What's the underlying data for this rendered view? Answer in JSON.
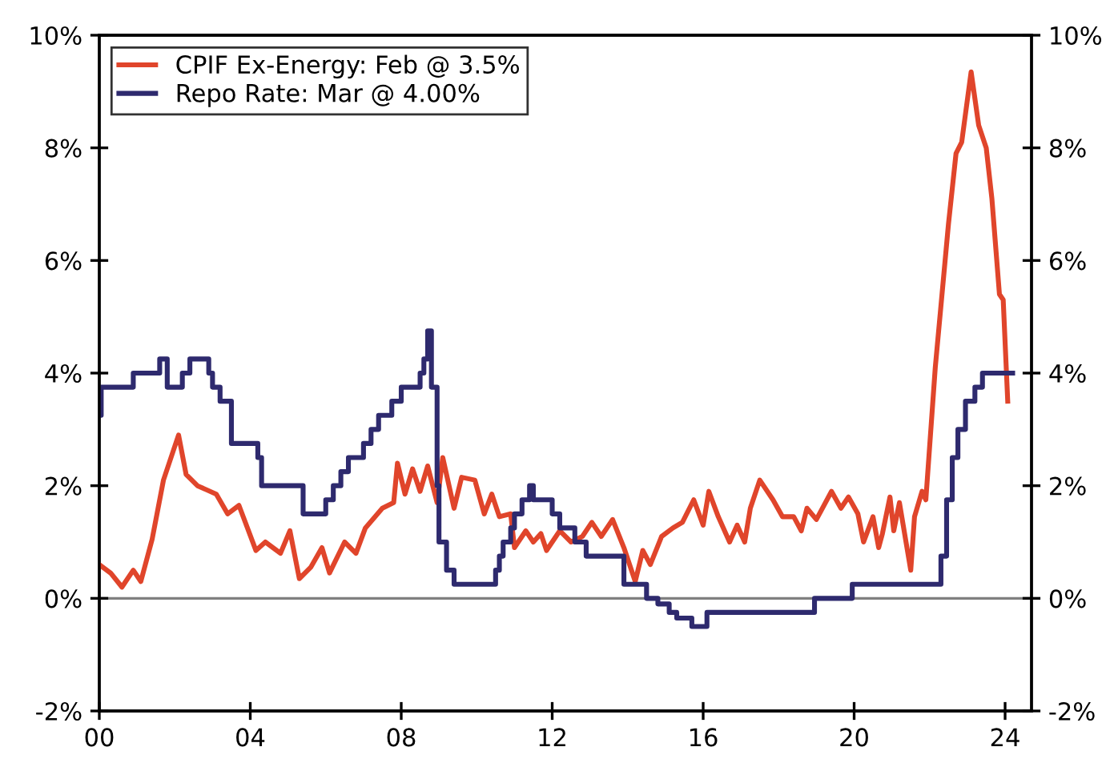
{
  "chart_data": {
    "type": "line",
    "xlim": [
      2000,
      2024.7
    ],
    "xticks": [
      {
        "value": 2000,
        "label": "00"
      },
      {
        "value": 2004,
        "label": "04"
      },
      {
        "value": 2008,
        "label": "08"
      },
      {
        "value": 2012,
        "label": "12"
      },
      {
        "value": 2016,
        "label": "16"
      },
      {
        "value": 2020,
        "label": "20"
      },
      {
        "value": 2024,
        "label": "24"
      }
    ],
    "ylim": [
      -2,
      10
    ],
    "yticks": [
      {
        "value": -2,
        "label": "-2%"
      },
      {
        "value": 0,
        "label": "0%"
      },
      {
        "value": 2,
        "label": "2%"
      },
      {
        "value": 4,
        "label": "4%"
      },
      {
        "value": 6,
        "label": "6%"
      },
      {
        "value": 8,
        "label": "8%"
      },
      {
        "value": 10,
        "label": "10%"
      }
    ],
    "y2lim": [
      -2,
      10
    ],
    "y2ticks": [
      {
        "value": -2,
        "label": "-2%"
      },
      {
        "value": 0,
        "label": "0%"
      },
      {
        "value": 2,
        "label": "2%"
      },
      {
        "value": 4,
        "label": "4%"
      },
      {
        "value": 6,
        "label": "6%"
      },
      {
        "value": 8,
        "label": "8%"
      },
      {
        "value": 10,
        "label": "10%"
      }
    ],
    "ref_lines": [
      {
        "axis": "y",
        "value": 0,
        "label": null,
        "color": "#808080"
      }
    ],
    "legend": "top left",
    "grid": false,
    "line_style": "solid",
    "marker": "none",
    "series": [
      {
        "name": "CPIF Ex-Energy: Feb @ 3.5%",
        "color": "#e0452b",
        "x": [
          2000.0,
          2000.3,
          2000.6,
          2000.9,
          2001.1,
          2001.4,
          2001.7,
          2002.1,
          2002.3,
          2002.6,
          2003.1,
          2003.4,
          2003.7,
          2004.15,
          2004.4,
          2004.8,
          2005.05,
          2005.3,
          2005.6,
          2005.9,
          2006.1,
          2006.5,
          2006.8,
          2007.05,
          2007.5,
          2007.8,
          2007.9,
          2008.1,
          2008.3,
          2008.5,
          2008.7,
          2008.95,
          2009.1,
          2009.4,
          2009.6,
          2009.95,
          2010.2,
          2010.4,
          2010.6,
          2010.9,
          2011.0,
          2011.3,
          2011.5,
          2011.7,
          2011.85,
          2012.2,
          2012.5,
          2012.8,
          2013.05,
          2013.3,
          2013.6,
          2013.9,
          2014.2,
          2014.4,
          2014.6,
          2014.9,
          2015.2,
          2015.45,
          2015.75,
          2016.0,
          2016.15,
          2016.4,
          2016.7,
          2016.9,
          2017.1,
          2017.25,
          2017.5,
          2017.85,
          2018.1,
          2018.4,
          2018.6,
          2018.75,
          2019.0,
          2019.4,
          2019.65,
          2019.85,
          2020.1,
          2020.25,
          2020.5,
          2020.65,
          2020.75,
          2020.95,
          2021.05,
          2021.2,
          2021.5,
          2021.6,
          2021.8,
          2021.9,
          2022.15,
          2022.5,
          2022.7,
          2022.85,
          2023.1,
          2023.3,
          2023.5,
          2023.65,
          2023.85,
          2023.95,
          2024.07
        ],
        "values": [
          0.6,
          0.45,
          0.2,
          0.5,
          0.3,
          1.05,
          2.1,
          2.9,
          2.2,
          2.0,
          1.85,
          1.5,
          1.65,
          0.85,
          1.0,
          0.8,
          1.2,
          0.35,
          0.55,
          0.9,
          0.45,
          1.0,
          0.8,
          1.25,
          1.6,
          1.7,
          2.4,
          1.85,
          2.3,
          1.9,
          2.35,
          1.7,
          2.5,
          1.6,
          2.15,
          2.1,
          1.5,
          1.85,
          1.45,
          1.5,
          0.9,
          1.2,
          1.0,
          1.15,
          0.85,
          1.2,
          1.0,
          1.1,
          1.35,
          1.1,
          1.4,
          0.9,
          0.3,
          0.85,
          0.6,
          1.1,
          1.25,
          1.35,
          1.75,
          1.3,
          1.9,
          1.45,
          1.0,
          1.3,
          1.0,
          1.6,
          2.1,
          1.75,
          1.45,
          1.45,
          1.2,
          1.6,
          1.4,
          1.9,
          1.6,
          1.8,
          1.5,
          1.0,
          1.45,
          0.9,
          1.15,
          1.8,
          1.2,
          1.7,
          0.5,
          1.45,
          1.9,
          1.75,
          4.1,
          6.65,
          7.9,
          8.1,
          9.35,
          8.4,
          8.0,
          7.1,
          5.4,
          5.3,
          3.5
        ]
      },
      {
        "name": "Repo Rate: Mar @ 4.00%",
        "color": "#2e2a6e",
        "type": "step",
        "x": [
          2000.0,
          2000.05,
          2000.9,
          2001.6,
          2001.8,
          2002.2,
          2002.4,
          2002.9,
          2003.0,
          2003.2,
          2003.5,
          2004.2,
          2004.3,
          2005.4,
          2006.0,
          2006.2,
          2006.4,
          2006.6,
          2007.0,
          2007.2,
          2007.4,
          2007.75,
          2008.0,
          2008.5,
          2008.6,
          2008.7,
          2008.8,
          2008.95,
          2009.0,
          2009.2,
          2009.4,
          2010.5,
          2010.6,
          2010.7,
          2010.9,
          2011.0,
          2011.2,
          2011.4,
          2011.5,
          2012.0,
          2012.2,
          2012.6,
          2012.9,
          2013.9,
          2014.5,
          2014.8,
          2015.1,
          2015.3,
          2015.7,
          2016.1,
          2018.95,
          2019.95,
          2022.3,
          2022.45,
          2022.6,
          2022.75,
          2022.95,
          2023.2,
          2023.4,
          2023.6,
          2023.75,
          2024.2
        ],
        "values": [
          3.25,
          3.75,
          4.0,
          4.25,
          3.75,
          4.0,
          4.25,
          4.0,
          3.75,
          3.5,
          2.75,
          2.5,
          2.0,
          1.5,
          1.75,
          2.0,
          2.25,
          2.5,
          2.75,
          3.0,
          3.25,
          3.5,
          3.75,
          4.0,
          4.25,
          4.75,
          3.75,
          2.0,
          1.0,
          0.5,
          0.25,
          0.5,
          0.75,
          1.0,
          1.25,
          1.5,
          1.75,
          2.0,
          1.75,
          1.5,
          1.25,
          1.0,
          0.75,
          0.25,
          0.0,
          -0.1,
          -0.25,
          -0.35,
          -0.5,
          -0.25,
          0.0,
          0.25,
          0.75,
          1.75,
          2.5,
          3.0,
          3.5,
          3.75,
          4.0,
          4.0,
          4.0,
          4.0
        ]
      }
    ]
  }
}
